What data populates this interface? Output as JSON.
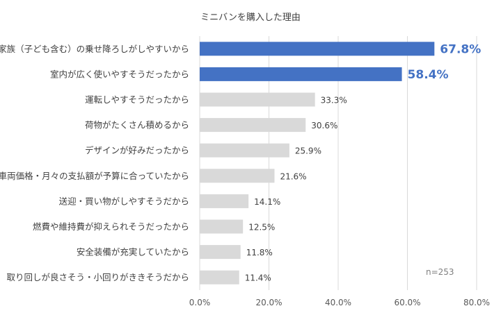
{
  "chart_data": {
    "type": "bar",
    "orientation": "horizontal",
    "title": "ミニバンを購入した理由",
    "categories": [
      "家族（子ども含む）の乗せ降ろしがしやすいから",
      "室内が広く使いやすそうだったから",
      "運転しやすそうだったから",
      "荷物がたくさん積めるから",
      "デザインが好みだったから",
      "車両価格・月々の支払額が予算に合っていたから",
      "送迎・買い物がしやすそうだから",
      "燃費や維持費が抑えられそうだったから",
      "安全装備が充実していたから",
      "取り回しが良さそう・小回りがききそうだから"
    ],
    "values": [
      67.8,
      58.4,
      33.3,
      30.6,
      25.9,
      21.6,
      14.1,
      12.5,
      11.8,
      11.4
    ],
    "value_labels": [
      "67.8%",
      "58.4%",
      "33.3%",
      "30.6%",
      "25.9%",
      "21.6%",
      "14.1%",
      "12.5%",
      "11.8%",
      "11.4%"
    ],
    "highlight_count": 2,
    "xlim": [
      0,
      80
    ],
    "xticks": [
      0,
      20,
      40,
      60,
      80
    ],
    "xtick_labels": [
      "0.0%",
      "20.0%",
      "40.0%",
      "60.0%",
      "80.0%"
    ],
    "grid": "vertical",
    "legend": "none",
    "note": "n=253",
    "colors": {
      "highlight": "#4472c4",
      "default": "#d9d9d9"
    }
  }
}
